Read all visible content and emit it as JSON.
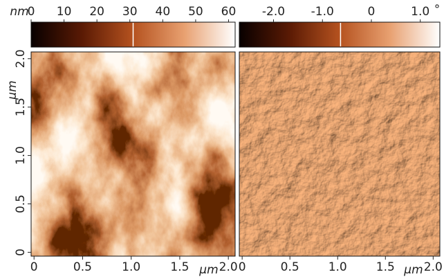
{
  "chart_data": [
    {
      "type": "image",
      "colorbar_label": "nm",
      "colorbar_lim": [
        0,
        62
      ],
      "colorbar_ticks": [
        0,
        10,
        20,
        30,
        40,
        50,
        60
      ],
      "colorbar_marker": 31,
      "xlim": [
        -0.03,
        2.07
      ],
      "xticks": [
        0,
        0.5,
        {
          "value": 1,
          "label": "1.0"
        },
        1.5,
        {
          "value": 2,
          "label": "2.0"
        }
      ],
      "ylim": [
        -0.04,
        2.07
      ],
      "yticks": [
        0,
        0.5,
        {
          "value": 1,
          "label": "1.0"
        },
        1.5,
        {
          "value": 2,
          "label": "2.0"
        }
      ],
      "xlabel": "μm",
      "ylabel": "μm"
    },
    {
      "type": "image",
      "colorbar_label": "°",
      "colorbar_lim": [
        -2.7,
        1.4
      ],
      "colorbar_ticks": [
        {
          "value": -2,
          "label": "-2.0"
        },
        {
          "value": -1,
          "label": "-1.0"
        },
        0,
        {
          "value": 1,
          "label": "1.0"
        }
      ],
      "colorbar_marker": -0.63,
      "xlim": [
        -0.03,
        2.07
      ],
      "xticks": [
        0,
        0.5,
        {
          "value": 1,
          "label": "1.0"
        },
        1.5,
        {
          "value": 2,
          "label": "2.0"
        }
      ],
      "xlabel": "μm"
    }
  ]
}
